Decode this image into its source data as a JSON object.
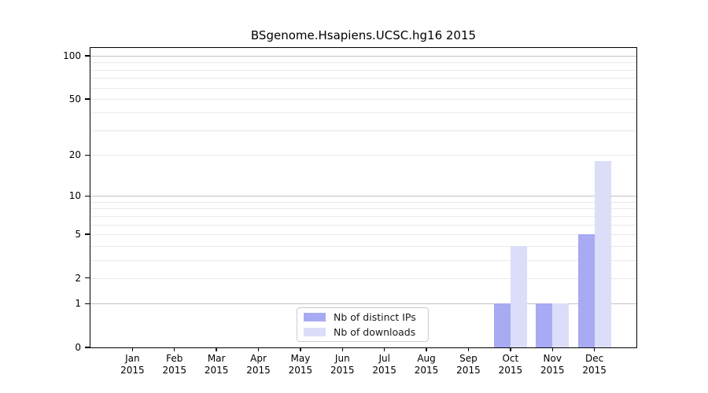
{
  "title": "BSgenome.Hsapiens.UCSC.hg16 2015",
  "chart_data": {
    "type": "bar",
    "title": "BSgenome.Hsapiens.UCSC.hg16 2015",
    "categories": [
      "Jan",
      "Feb",
      "Mar",
      "Apr",
      "May",
      "Jun",
      "Jul",
      "Aug",
      "Sep",
      "Oct",
      "Nov",
      "Dec"
    ],
    "category_year": "2015",
    "series": [
      {
        "name": "Nb of distinct IPs",
        "color": "#a8aaf3",
        "values": [
          0,
          0,
          0,
          0,
          0,
          0,
          0,
          0,
          0,
          1,
          1,
          5
        ]
      },
      {
        "name": "Nb of downloads",
        "color": "#dbddf9",
        "values": [
          0,
          0,
          0,
          0,
          0,
          0,
          0,
          0,
          0,
          4,
          1,
          18
        ]
      }
    ],
    "yscale": "log1p",
    "ylim": [
      0,
      110
    ],
    "yticks": [
      0,
      1,
      2,
      5,
      10,
      20,
      50,
      100
    ],
    "major_gridlines": [
      1,
      10,
      100
    ],
    "minor_gridlines": [
      2,
      3,
      4,
      5,
      6,
      7,
      8,
      9,
      20,
      30,
      40,
      50,
      60,
      70,
      80,
      90
    ],
    "grid": "horizontal",
    "legend_position": "bottom-center-inside"
  }
}
